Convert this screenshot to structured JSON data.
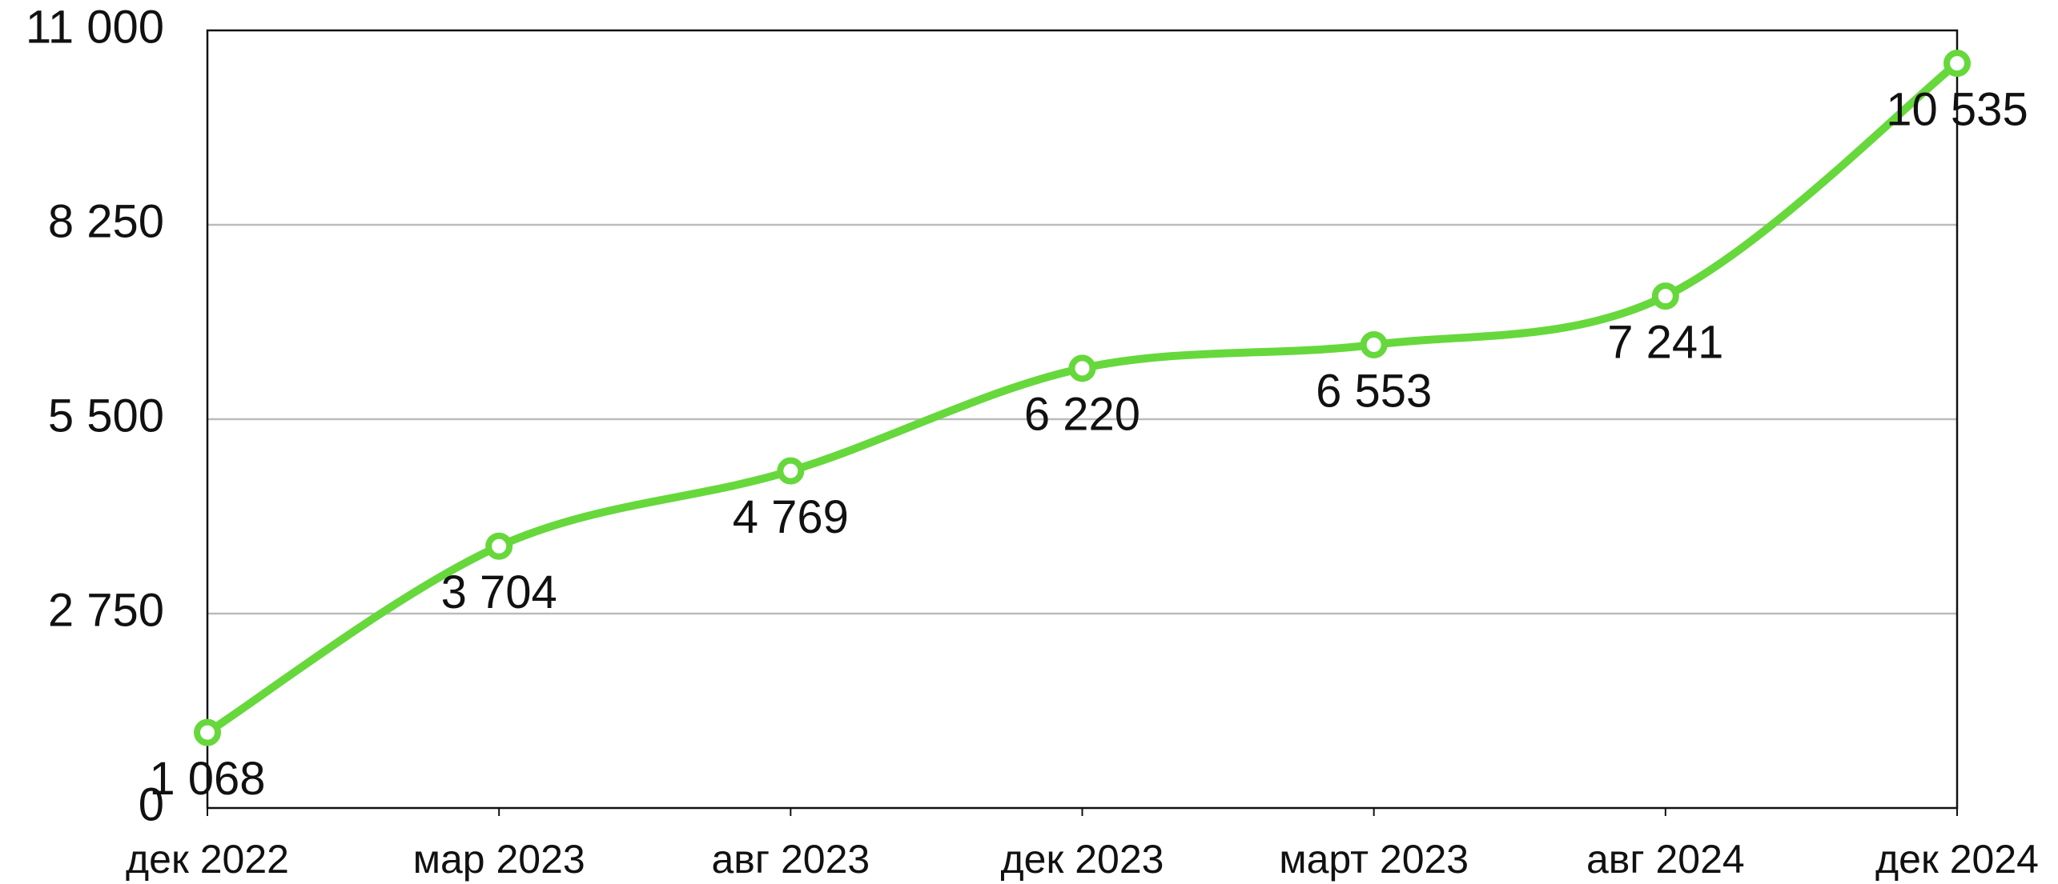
{
  "chart_data": {
    "type": "line",
    "categories": [
      "дек 2022",
      "мар 2023",
      "авг 2023",
      "дек 2023",
      "март 2023",
      "авг 2024",
      "дек 2024"
    ],
    "series": [
      {
        "color": "#66d83c",
        "values": [
          1068,
          3704,
          4769,
          6220,
          6553,
          7241,
          10535
        ],
        "value_labels": [
          "1 068",
          "3 704",
          "4 769",
          "6 220",
          "6 553",
          "7 241",
          "10 535"
        ]
      }
    ],
    "ylim": [
      0,
      11000
    ],
    "yticks": [
      0,
      {
        "value": 2750,
        "label": "2 750"
      },
      {
        "value": 5500,
        "label": "5 500"
      },
      {
        "value": 8250,
        "label": "8 250"
      },
      {
        "value": 11000,
        "label": "11 000"
      }
    ],
    "grid": true
  }
}
